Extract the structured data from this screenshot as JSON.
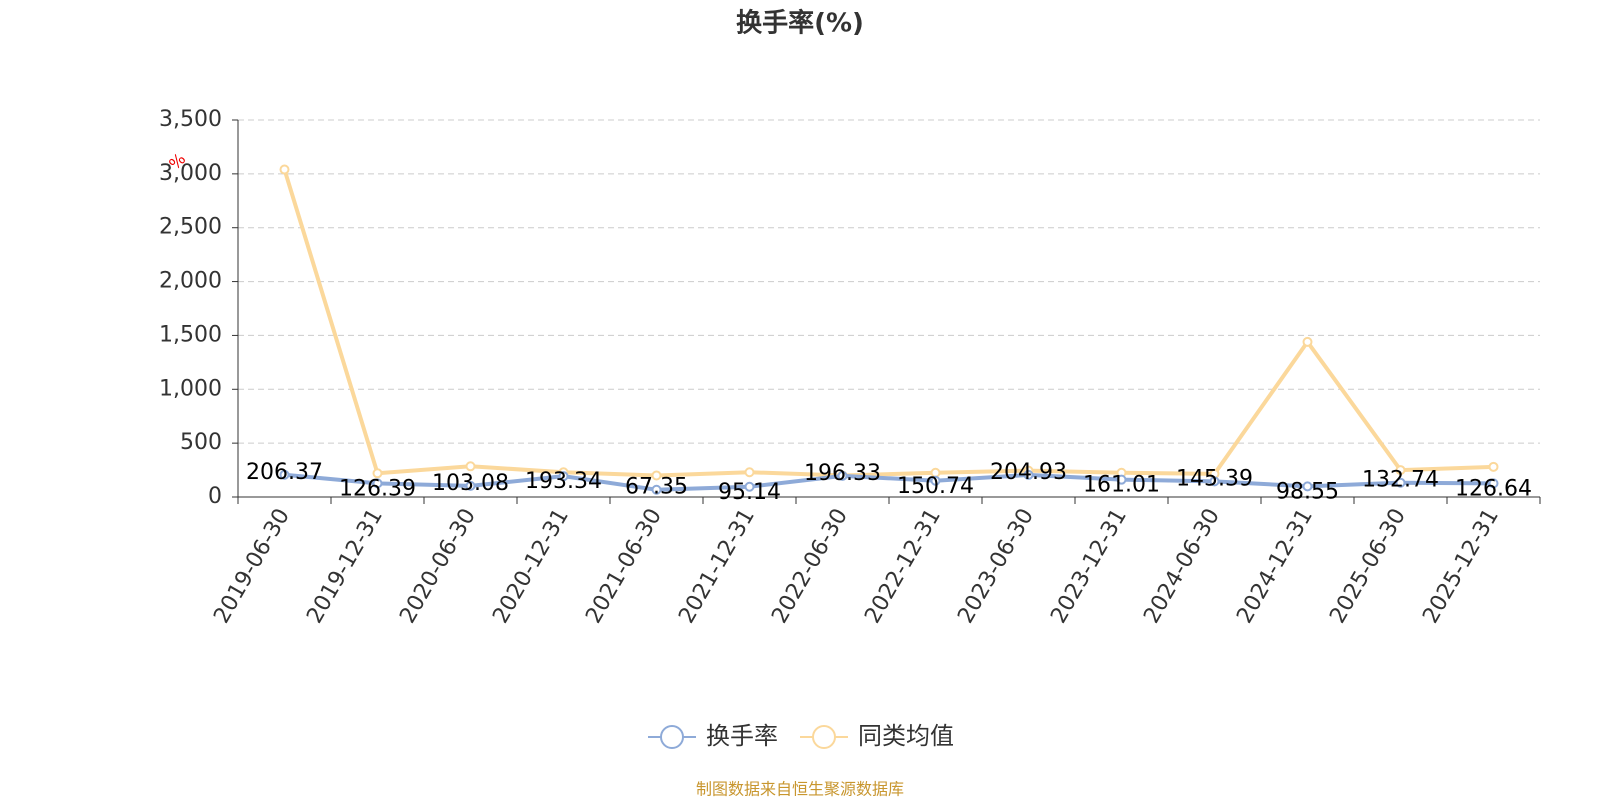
{
  "chart_data": {
    "type": "line",
    "title": "换手率(%)",
    "y_unit": "%",
    "source": "制图数据来自恒生聚源数据库",
    "categories": [
      "2019-06-30",
      "2019-12-31",
      "2020-06-30",
      "2020-12-31",
      "2021-06-30",
      "2021-12-31",
      "2022-06-30",
      "2022-12-31",
      "2023-06-30",
      "2023-12-31",
      "2024-06-30",
      "2024-12-31",
      "2025-06-30",
      "2025-12-31"
    ],
    "series": [
      {
        "name": "换手率",
        "color": "#8eaad8",
        "values": [
          206.37,
          126.39,
          103.08,
          193.34,
          67.35,
          95.14,
          196.33,
          150.74,
          204.93,
          161.01,
          145.39,
          98.55,
          132.74,
          126.64
        ]
      },
      {
        "name": "同类均值",
        "color": "#fbd89b",
        "values": [
          3040,
          220,
          285,
          230,
          200,
          230,
          200,
          225,
          245,
          225,
          215,
          1440,
          250,
          280
        ]
      }
    ],
    "ylim": [
      0,
      3500
    ],
    "yticks": [
      0,
      500,
      {
        "value": 1000,
        "label": "1,000"
      },
      {
        "value": 1500,
        "label": "1,500"
      },
      {
        "value": 2000,
        "label": "2,000"
      },
      {
        "value": 2500,
        "label": "2,500"
      },
      {
        "value": 3000,
        "label": "3,000"
      },
      {
        "value": 3500,
        "label": "3,500"
      }
    ],
    "grid": true
  }
}
